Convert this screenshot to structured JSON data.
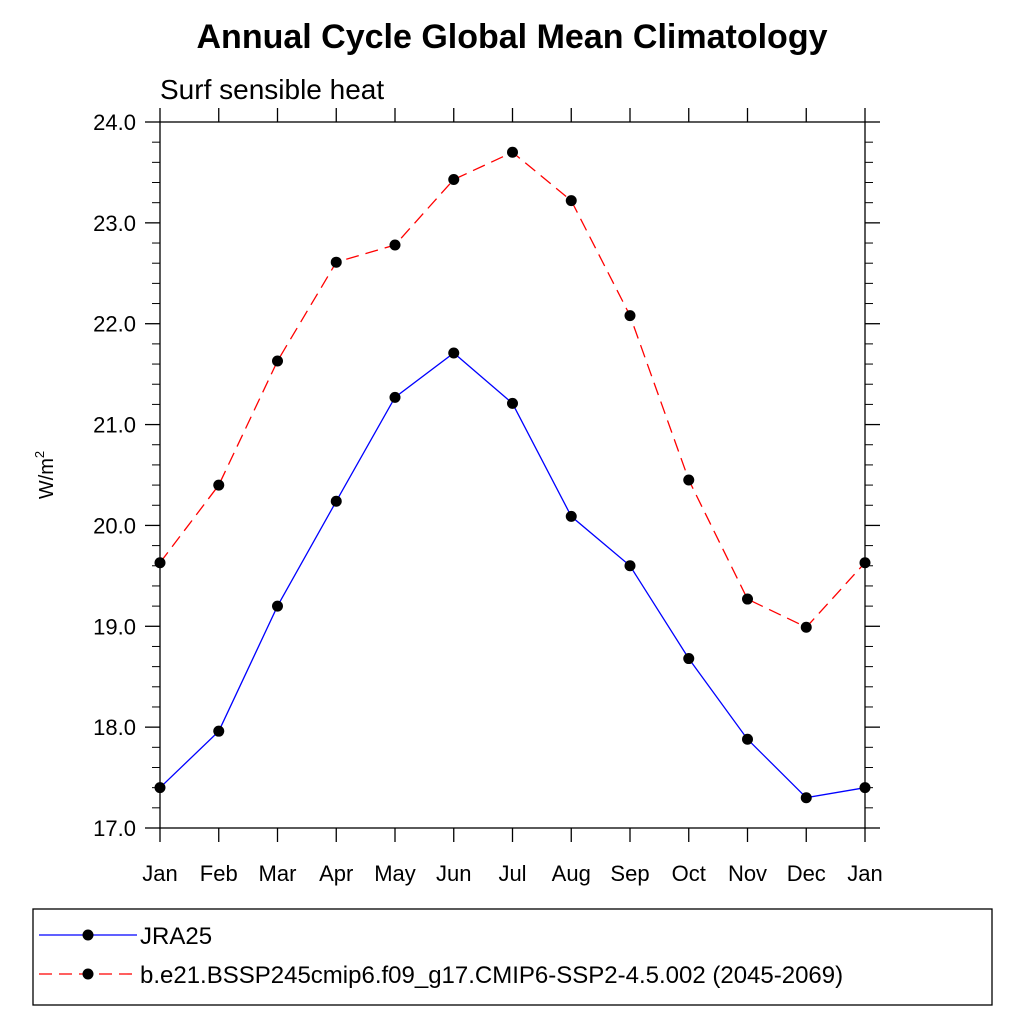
{
  "chart_data": {
    "type": "line",
    "title": "Annual Cycle Global Mean Climatology",
    "subtitle": "Surf sensible heat",
    "xlabel": "",
    "ylabel": "W/m",
    "ylabel_superscript": "2",
    "categories": [
      "Jan",
      "Feb",
      "Mar",
      "Apr",
      "May",
      "Jun",
      "Jul",
      "Aug",
      "Sep",
      "Oct",
      "Nov",
      "Dec",
      "Jan"
    ],
    "ylim": [
      17.0,
      24.0
    ],
    "yticks": [
      "17.0",
      "18.0",
      "19.0",
      "20.0",
      "21.0",
      "22.0",
      "23.0",
      "24.0"
    ],
    "grid": false,
    "legend_position": "bottom",
    "series": [
      {
        "name": "JRA25",
        "color": "#0000ff",
        "style": "solid",
        "values": [
          17.4,
          17.96,
          19.2,
          20.24,
          21.27,
          21.71,
          21.21,
          20.09,
          19.6,
          18.68,
          17.88,
          17.3,
          17.4
        ]
      },
      {
        "name": "b.e21.BSSP245cmip6.f09_g17.CMIP6-SSP2-4.5.002 (2045-2069)",
        "color": "#ff0000",
        "style": "dashed",
        "values": [
          19.63,
          20.4,
          21.63,
          22.61,
          22.78,
          23.43,
          23.7,
          23.22,
          22.08,
          20.45,
          19.27,
          18.99,
          19.63
        ]
      }
    ]
  }
}
